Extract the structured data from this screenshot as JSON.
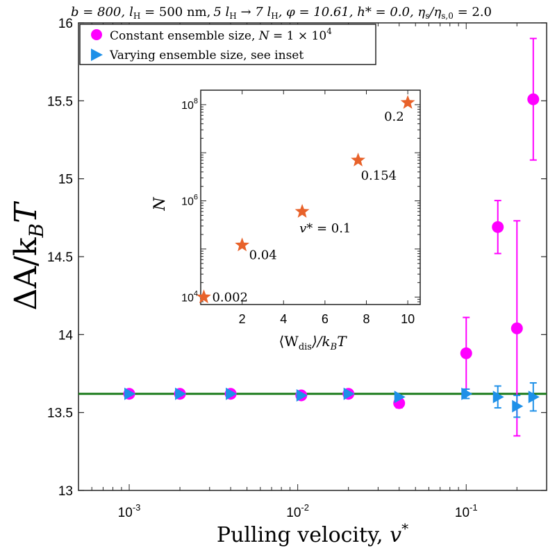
{
  "chart_data": [
    {
      "type": "scatter",
      "title": "b = 800, lH = 500 nm, 5 lH → 7 lH, φ = 10.61, h* = 0.0, ηs/ηs,0 = 2.0",
      "title_parts": {
        "b": "b = 800,",
        "lh": "l",
        "lh_sub": "H",
        "lh_eq": " = 500 nm,",
        "five": "5 l",
        "five_sub": "H",
        "arrow": " → 7 l",
        "seven_sub": "H",
        "phi": ", φ = 10.61,",
        "h": " h* = 0.0,",
        "eta": " η",
        "eta_sub": "s",
        "eta_mid": "/η",
        "eta_sub2": "s,0",
        "eta_end": " = 2.0"
      },
      "xlabel": "Pulling velocity, v*",
      "xlabel_main": "Pulling velocity, ",
      "xlabel_var": "v",
      "xlabel_sup": "*",
      "ylabel": "ΔA/k_B T",
      "ylabel_main": "ΔA/k",
      "ylabel_sub": "B",
      "ylabel_end": "T",
      "x_scale": "log",
      "xlim": [
        0.0005,
        0.3
      ],
      "ylim": [
        13,
        16
      ],
      "x_ticks": [
        {
          "value": 0.001,
          "base": "10",
          "exp": "-3"
        },
        {
          "value": 0.01,
          "base": "10",
          "exp": "-2"
        },
        {
          "value": 0.1,
          "base": "10",
          "exp": "-1"
        }
      ],
      "y_ticks": [
        {
          "value": 13,
          "label": "13"
        },
        {
          "value": 13.5,
          "label": "13.5"
        },
        {
          "value": 14,
          "label": "14"
        },
        {
          "value": 14.5,
          "label": "14.5"
        },
        {
          "value": 15,
          "label": "15"
        },
        {
          "value": 15.5,
          "label": "15.5"
        },
        {
          "value": 16,
          "label": "16"
        }
      ],
      "reference_line": {
        "y": 13.62,
        "color": "#1a7a1a"
      },
      "series": [
        {
          "name": "Constant ensemble size, N = 1 × 10^4",
          "legend_main": "Constant ensemble size, ",
          "legend_var": "N",
          "legend_eq": " = 1 × 10",
          "legend_sup": "4",
          "marker": "circle",
          "color": "#ff00ff",
          "points": [
            {
              "x": 0.001,
              "y": 13.62,
              "err": 0.0
            },
            {
              "x": 0.002,
              "y": 13.62,
              "err": 0.0
            },
            {
              "x": 0.004,
              "y": 13.62,
              "err": 0.0
            },
            {
              "x": 0.0105,
              "y": 13.61,
              "err": 0.0
            },
            {
              "x": 0.02,
              "y": 13.62,
              "err": 0.0
            },
            {
              "x": 0.04,
              "y": 13.56,
              "err": 0.03
            },
            {
              "x": 0.1,
              "y": 13.88,
              "err": 0.23
            },
            {
              "x": 0.154,
              "y": 14.69,
              "err": 0.17
            },
            {
              "x": 0.2,
              "y": 14.04,
              "err": 0.69
            },
            {
              "x": 0.25,
              "y": 15.51,
              "err": 0.39
            }
          ]
        },
        {
          "name": "Varying ensemble size, see inset",
          "legend_main": "Varying ensemble size, see inset",
          "marker": "triangle-right",
          "color": "#1e90e8",
          "points": [
            {
              "x": 0.001,
              "y": 13.62,
              "err": 0.0
            },
            {
              "x": 0.002,
              "y": 13.62,
              "err": 0.0
            },
            {
              "x": 0.004,
              "y": 13.62,
              "err": 0.0
            },
            {
              "x": 0.0105,
              "y": 13.61,
              "err": 0.0
            },
            {
              "x": 0.02,
              "y": 13.62,
              "err": 0.0
            },
            {
              "x": 0.04,
              "y": 13.6,
              "err": 0.0
            },
            {
              "x": 0.1,
              "y": 13.62,
              "err": 0.03
            },
            {
              "x": 0.154,
              "y": 13.6,
              "err": 0.07
            },
            {
              "x": 0.2,
              "y": 13.54,
              "err": 0.07
            },
            {
              "x": 0.25,
              "y": 13.6,
              "err": 0.09
            }
          ]
        }
      ]
    },
    {
      "type": "scatter",
      "role": "inset",
      "xlabel": "⟨W_dis⟩/k_B T",
      "xlabel_parts": {
        "open": "⟨W",
        "sub": "dis",
        "close": "⟩/k",
        "sub2": "B",
        "end": "T"
      },
      "ylabel": "N",
      "y_scale": "log",
      "xlim": [
        0,
        10.6
      ],
      "ylim": [
        7000,
        200000000
      ],
      "x_ticks": [
        {
          "value": 2,
          "label": "2"
        },
        {
          "value": 4,
          "label": "4"
        },
        {
          "value": 6,
          "label": "6"
        },
        {
          "value": 8,
          "label": "8"
        },
        {
          "value": 10,
          "label": "10"
        }
      ],
      "y_ticks": [
        {
          "value": 10000,
          "base": "10",
          "exp": "4"
        },
        {
          "value": 1000000,
          "base": "10",
          "exp": "6"
        },
        {
          "value": 100000000,
          "base": "10",
          "exp": "8"
        }
      ],
      "marker": "star",
      "color": "#e8622a",
      "points": [
        {
          "x": 0.15,
          "y": 10000,
          "label": "0.002"
        },
        {
          "x": 2.0,
          "y": 120000,
          "label": "0.04"
        },
        {
          "x": 4.9,
          "y": 600000,
          "label": "v* = 0.1",
          "label_main": "v",
          "label_rest": "* = 0.1"
        },
        {
          "x": 7.6,
          "y": 7000000,
          "label": "0.154"
        },
        {
          "x": 10.0,
          "y": 110000000,
          "label": "0.2"
        }
      ]
    }
  ]
}
